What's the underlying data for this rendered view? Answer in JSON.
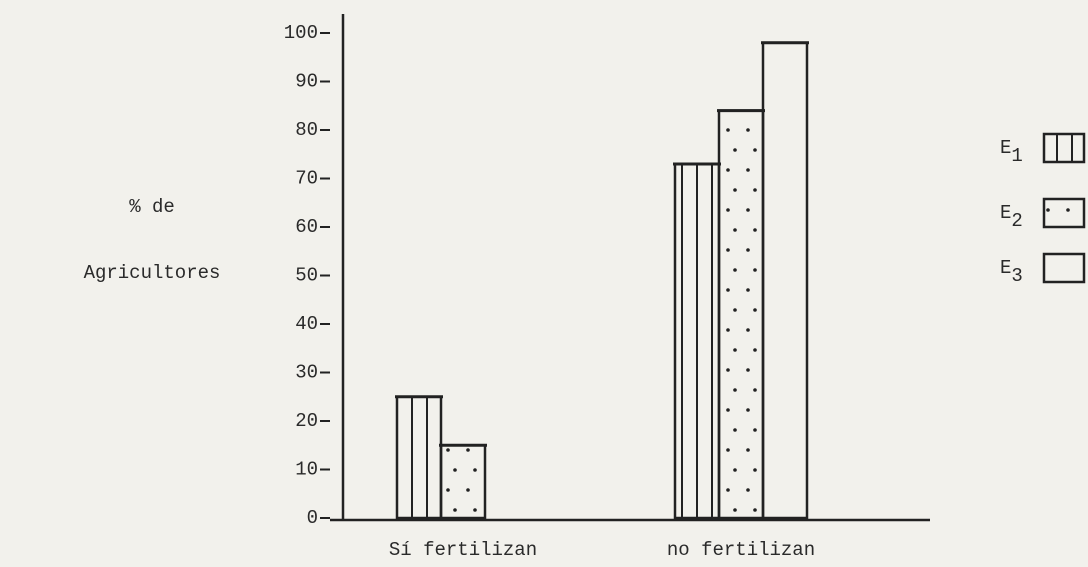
{
  "chart_data": {
    "type": "bar",
    "ylabel": [
      "% de",
      "Agricultores"
    ],
    "categories": [
      "Sí fertilizan",
      "no fertilizan"
    ],
    "series": [
      {
        "name": "E1",
        "color": "#222222",
        "pattern": "vertical-lines",
        "values": [
          25,
          73
        ]
      },
      {
        "name": "E2",
        "color": "#222222",
        "pattern": "dots",
        "values": [
          15,
          84
        ]
      },
      {
        "name": "E3",
        "color": "#222222",
        "pattern": "none",
        "values": [
          0,
          98
        ]
      }
    ],
    "ylim": [
      0,
      100
    ],
    "yticks": [
      0,
      10,
      20,
      30,
      40,
      50,
      60,
      70,
      80,
      90,
      100
    ],
    "legend": "right"
  }
}
